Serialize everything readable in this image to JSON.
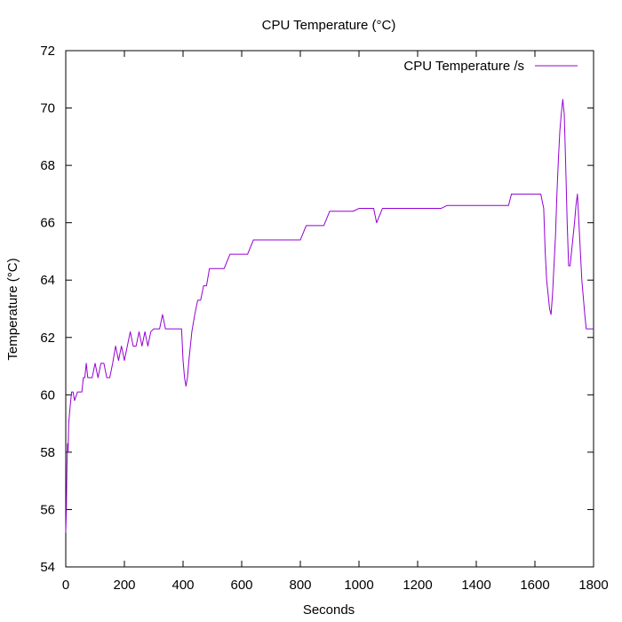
{
  "chart_data": {
    "type": "line",
    "title": "CPU Temperature (°C)",
    "xlabel": "Seconds",
    "ylabel": "Temperature (°C)",
    "xlim": [
      0,
      1800
    ],
    "ylim": [
      54,
      72
    ],
    "xticks": [
      0,
      200,
      400,
      600,
      800,
      1000,
      1200,
      1400,
      1600,
      1800
    ],
    "yticks": [
      54,
      56,
      58,
      60,
      62,
      64,
      66,
      68,
      70,
      72
    ],
    "grid": false,
    "legend_position": "top-right",
    "series": [
      {
        "name": "CPU Temperature /s",
        "color": "#9400d3",
        "x": [
          0,
          2,
          4,
          6,
          8,
          10,
          15,
          20,
          25,
          30,
          40,
          50,
          55,
          60,
          65,
          70,
          75,
          80,
          90,
          100,
          110,
          120,
          130,
          140,
          150,
          160,
          170,
          180,
          190,
          200,
          210,
          220,
          230,
          240,
          250,
          260,
          270,
          280,
          290,
          300,
          310,
          320,
          330,
          340,
          350,
          360,
          370,
          380,
          390,
          395,
          400,
          405,
          410,
          415,
          420,
          425,
          430,
          440,
          450,
          460,
          470,
          480,
          490,
          500,
          520,
          540,
          560,
          580,
          600,
          620,
          640,
          660,
          680,
          700,
          720,
          740,
          760,
          780,
          800,
          820,
          840,
          860,
          880,
          900,
          920,
          940,
          960,
          980,
          1000,
          1020,
          1040,
          1050,
          1060,
          1080,
          1100,
          1120,
          1140,
          1160,
          1180,
          1200,
          1220,
          1240,
          1260,
          1280,
          1300,
          1320,
          1340,
          1360,
          1380,
          1400,
          1420,
          1440,
          1460,
          1480,
          1490,
          1500,
          1510,
          1520,
          1540,
          1560,
          1580,
          1600,
          1610,
          1620,
          1630,
          1635,
          1640,
          1645,
          1650,
          1655,
          1660,
          1665,
          1670,
          1675,
          1680,
          1685,
          1690,
          1695,
          1700,
          1705,
          1710,
          1715,
          1720,
          1725,
          1730,
          1735,
          1740,
          1745,
          1750,
          1755,
          1760,
          1765,
          1770,
          1775,
          1780,
          1790,
          1798
        ],
        "y": [
          55.2,
          56.0,
          57.5,
          58.3,
          58.0,
          59.0,
          59.6,
          60.1,
          60.1,
          59.8,
          60.1,
          60.1,
          60.1,
          60.6,
          60.6,
          61.1,
          60.6,
          60.6,
          60.6,
          61.1,
          60.6,
          61.1,
          61.1,
          60.6,
          60.6,
          61.1,
          61.7,
          61.2,
          61.7,
          61.2,
          61.7,
          62.2,
          61.7,
          61.7,
          62.2,
          61.7,
          62.2,
          61.7,
          62.2,
          62.3,
          62.3,
          62.3,
          62.8,
          62.3,
          62.3,
          62.3,
          62.3,
          62.3,
          62.3,
          62.3,
          61.2,
          60.6,
          60.3,
          60.6,
          61.2,
          61.7,
          62.2,
          62.8,
          63.3,
          63.3,
          63.8,
          63.8,
          64.4,
          64.4,
          64.4,
          64.4,
          64.9,
          64.9,
          64.9,
          64.9,
          65.4,
          65.4,
          65.4,
          65.4,
          65.4,
          65.4,
          65.4,
          65.4,
          65.4,
          65.9,
          65.9,
          65.9,
          65.9,
          66.4,
          66.4,
          66.4,
          66.4,
          66.4,
          66.5,
          66.5,
          66.5,
          66.5,
          66.0,
          66.5,
          66.5,
          66.5,
          66.5,
          66.5,
          66.5,
          66.5,
          66.5,
          66.5,
          66.5,
          66.5,
          66.6,
          66.6,
          66.6,
          66.6,
          66.6,
          66.6,
          66.6,
          66.6,
          66.6,
          66.6,
          66.6,
          66.6,
          66.6,
          67.0,
          67.0,
          67.0,
          67.0,
          67.0,
          67.0,
          67.0,
          66.5,
          65.0,
          64.0,
          63.5,
          63.0,
          62.8,
          63.5,
          64.5,
          65.5,
          67.0,
          68.2,
          69.2,
          69.8,
          70.3,
          69.8,
          68.0,
          66.0,
          64.5,
          64.5,
          65.0,
          65.5,
          66.0,
          66.6,
          67.0,
          66.0,
          65.0,
          64.0,
          63.4,
          62.8,
          62.3,
          62.3,
          62.3,
          62.3
        ]
      }
    ]
  }
}
